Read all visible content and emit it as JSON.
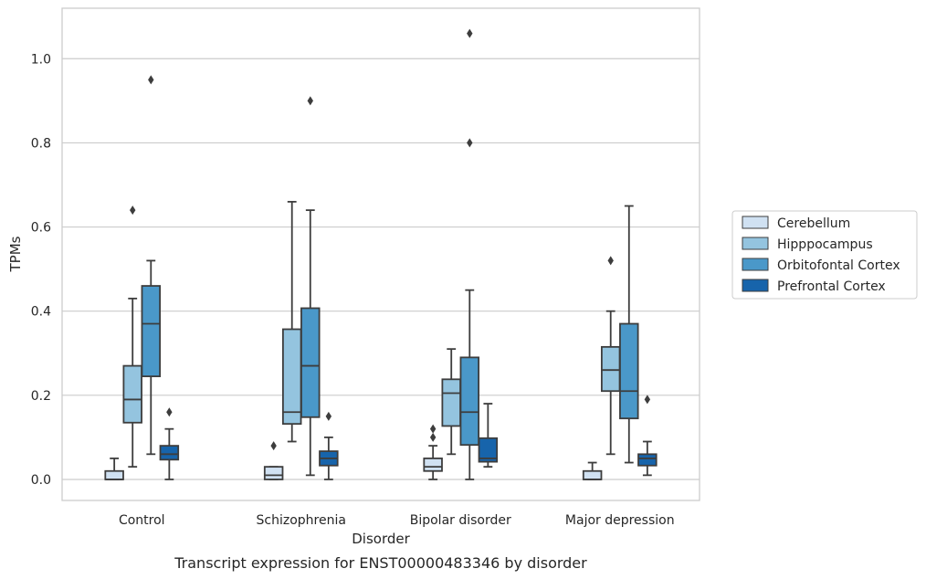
{
  "chart_data": {
    "type": "box",
    "xlabel": "Disorder",
    "ylabel": "TPMs",
    "caption": "Transcript expression for ENST00000483346 by disorder",
    "categories": [
      "Control",
      "Schizophrenia",
      "Bipolar disorder",
      "Major depression"
    ],
    "ylim": [
      -0.05,
      1.12
    ],
    "yticks": [
      "0.0",
      "0.2",
      "0.4",
      "0.6",
      "0.8",
      "1.0"
    ],
    "grid": "horizontal",
    "legend_position": "right",
    "series": [
      {
        "name": "Cerebellum",
        "color": "#d0e1f2",
        "boxes": [
          {
            "whislo": 0.0,
            "q1": 0.0,
            "med": 0.0,
            "q3": 0.02,
            "whishi": 0.05,
            "fliers": []
          },
          {
            "whislo": 0.0,
            "q1": 0.0,
            "med": 0.01,
            "q3": 0.03,
            "whishi": 0.03,
            "fliers": [
              0.08
            ]
          },
          {
            "whislo": 0.0,
            "q1": 0.02,
            "med": 0.03,
            "q3": 0.05,
            "whishi": 0.08,
            "fliers": [
              0.1,
              0.12
            ]
          },
          {
            "whislo": 0.0,
            "q1": 0.0,
            "med": 0.0,
            "q3": 0.02,
            "whishi": 0.04,
            "fliers": []
          }
        ]
      },
      {
        "name": "Hipppocampus",
        "color": "#94c4df",
        "boxes": [
          {
            "whislo": 0.03,
            "q1": 0.135,
            "med": 0.19,
            "q3": 0.27,
            "whishi": 0.43,
            "fliers": [
              0.64
            ]
          },
          {
            "whislo": 0.09,
            "q1": 0.132,
            "med": 0.16,
            "q3": 0.357,
            "whishi": 0.66,
            "fliers": []
          },
          {
            "whislo": 0.06,
            "q1": 0.127,
            "med": 0.205,
            "q3": 0.238,
            "whishi": 0.31,
            "fliers": []
          },
          {
            "whislo": 0.06,
            "q1": 0.21,
            "med": 0.26,
            "q3": 0.315,
            "whishi": 0.4,
            "fliers": [
              0.52
            ]
          }
        ]
      },
      {
        "name": "Orbitofontal Cortex",
        "color": "#4a98c9",
        "boxes": [
          {
            "whislo": 0.06,
            "q1": 0.245,
            "med": 0.37,
            "q3": 0.46,
            "whishi": 0.52,
            "fliers": [
              0.95
            ]
          },
          {
            "whislo": 0.01,
            "q1": 0.148,
            "med": 0.27,
            "q3": 0.407,
            "whishi": 0.64,
            "fliers": [
              0.9
            ]
          },
          {
            "whislo": 0.0,
            "q1": 0.082,
            "med": 0.16,
            "q3": 0.29,
            "whishi": 0.45,
            "fliers": [
              0.8,
              1.06
            ]
          },
          {
            "whislo": 0.04,
            "q1": 0.145,
            "med": 0.21,
            "q3": 0.37,
            "whishi": 0.65,
            "fliers": []
          }
        ]
      },
      {
        "name": "Prefrontal Cortex",
        "color": "#1764ab",
        "boxes": [
          {
            "whislo": 0.0,
            "q1": 0.047,
            "med": 0.06,
            "q3": 0.08,
            "whishi": 0.12,
            "fliers": [
              0.16
            ]
          },
          {
            "whislo": 0.0,
            "q1": 0.033,
            "med": 0.05,
            "q3": 0.067,
            "whishi": 0.1,
            "fliers": [
              0.15
            ]
          },
          {
            "whislo": 0.03,
            "q1": 0.042,
            "med": 0.05,
            "q3": 0.098,
            "whishi": 0.18,
            "fliers": []
          },
          {
            "whislo": 0.01,
            "q1": 0.033,
            "med": 0.05,
            "q3": 0.06,
            "whishi": 0.09,
            "fliers": [
              0.19
            ]
          }
        ]
      }
    ]
  }
}
